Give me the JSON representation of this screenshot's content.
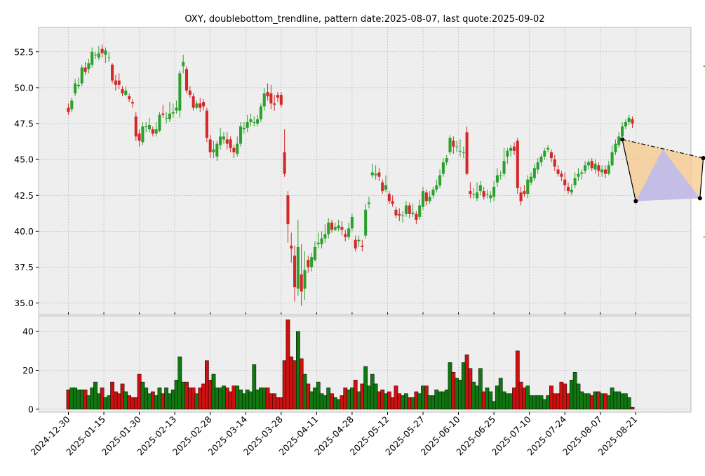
{
  "chart_data": {
    "type": "candlestick",
    "title": "OXY, doublebottom_trendline, pattern date:2025-08-07, last quote:2025-09-02",
    "price_axis": {
      "ylim": [
        34.2,
        54.2
      ],
      "ticks": [
        "35.0",
        "37.5",
        "40.0",
        "42.5",
        "45.0",
        "47.5",
        "50.0",
        "52.5"
      ]
    },
    "volume_axis": {
      "ylim": [
        -1.5,
        48
      ],
      "ticks": [
        "0",
        "20",
        "40"
      ]
    },
    "x_ticks": [
      "2024-12-30",
      "2025-01-15",
      "2025-01-30",
      "2025-02-13",
      "2025-02-28",
      "2025-03-14",
      "2025-03-28",
      "2025-04-11",
      "2025-04-28",
      "2025-05-12",
      "2025-05-27",
      "2025-06-10",
      "2025-06-25",
      "2025-07-10",
      "2025-07-24",
      "2025-08-07",
      "2025-08-21"
    ],
    "grid": true,
    "colors": {
      "up": "#2ca02c",
      "down": "#d62728",
      "vol_up": "#117711",
      "vol_down": "#cc1111",
      "levels": "#008000",
      "fill_pattern": "#f5c88a",
      "fill_inner": "#b8b8f5"
    },
    "pattern_points": [
      {
        "i": 164,
        "p": 46.4
      },
      {
        "i": 168,
        "p": 42.1
      },
      {
        "i": 187,
        "p": 42.3
      },
      {
        "i": 188,
        "p": 45.1
      }
    ],
    "levels": [
      {
        "i0": 188,
        "i1": 214,
        "p": 51.5
      },
      {
        "i0": 188,
        "i1": 214,
        "p": 39.6
      }
    ],
    "bars": [
      [
        0,
        48.6,
        48.3,
        48.9,
        48.1,
        10
      ],
      [
        1,
        48.5,
        49.1,
        49.3,
        48.3,
        11
      ],
      [
        2,
        49.6,
        50.3,
        50.6,
        49.4,
        11
      ],
      [
        3,
        50.1,
        50.2,
        50.7,
        49.9,
        10
      ],
      [
        4,
        50.3,
        51.4,
        51.6,
        50.1,
        10
      ],
      [
        5,
        51.4,
        51.1,
        51.8,
        50.9,
        10
      ],
      [
        6,
        51.3,
        51.7,
        52.0,
        51.0,
        7
      ],
      [
        7,
        51.6,
        52.5,
        52.8,
        51.4,
        11
      ],
      [
        8,
        52.3,
        52.3,
        52.5,
        52.0,
        14
      ],
      [
        9,
        52.1,
        52.4,
        52.9,
        51.9,
        8
      ],
      [
        10,
        52.7,
        52.4,
        53.0,
        52.1,
        11
      ],
      [
        11,
        52.3,
        52.6,
        52.8,
        51.7,
        6
      ],
      [
        12,
        52.1,
        52.1,
        52.5,
        51.8,
        7
      ],
      [
        13,
        51.6,
        50.5,
        51.7,
        50.3,
        14
      ],
      [
        14,
        50.5,
        50.2,
        50.9,
        49.8,
        9
      ],
      [
        15,
        50.5,
        50.2,
        51.0,
        49.9,
        8
      ],
      [
        16,
        49.9,
        49.6,
        50.1,
        49.4,
        13
      ],
      [
        17,
        49.5,
        49.8,
        50.1,
        49.4,
        9
      ],
      [
        18,
        49.4,
        49.2,
        49.6,
        49.0,
        7
      ],
      [
        19,
        49.0,
        48.9,
        49.2,
        48.6,
        6
      ],
      [
        20,
        48.0,
        46.6,
        48.3,
        46.3,
        6
      ],
      [
        21,
        46.8,
        46.3,
        47.1,
        45.9,
        18
      ],
      [
        22,
        46.2,
        47.3,
        47.6,
        46.0,
        14
      ],
      [
        23,
        47.3,
        47.3,
        47.6,
        46.9,
        11
      ],
      [
        24,
        47.1,
        47.4,
        47.9,
        46.9,
        8
      ],
      [
        25,
        47.1,
        46.8,
        47.3,
        46.6,
        9
      ],
      [
        26,
        46.8,
        47.1,
        47.6,
        46.6,
        7
      ],
      [
        27,
        47.0,
        48.1,
        48.3,
        46.9,
        11
      ],
      [
        28,
        48.2,
        48.1,
        48.8,
        47.9,
        8
      ],
      [
        29,
        47.9,
        47.9,
        48.3,
        47.5,
        11
      ],
      [
        30,
        47.8,
        48.2,
        49.0,
        47.6,
        8
      ],
      [
        31,
        48.2,
        48.3,
        48.9,
        47.9,
        10
      ],
      [
        32,
        48.4,
        48.6,
        49.1,
        48.2,
        15
      ],
      [
        33,
        48.4,
        51.0,
        51.2,
        47.9,
        27
      ],
      [
        34,
        51.5,
        51.8,
        52.3,
        51.0,
        14
      ],
      [
        35,
        51.3,
        49.8,
        51.5,
        49.6,
        14
      ],
      [
        36,
        49.8,
        49.5,
        50.1,
        49.3,
        11
      ],
      [
        37,
        49.4,
        48.6,
        49.6,
        48.4,
        11
      ],
      [
        38,
        48.6,
        48.9,
        49.1,
        48.5,
        8
      ],
      [
        39,
        48.9,
        48.6,
        49.3,
        48.3,
        11
      ],
      [
        40,
        49.0,
        48.7,
        49.2,
        48.4,
        13
      ],
      [
        41,
        48.4,
        46.5,
        48.6,
        46.2,
        25
      ],
      [
        42,
        46.4,
        45.5,
        46.7,
        45.1,
        15
      ],
      [
        43,
        45.5,
        45.7,
        46.3,
        45.1,
        18
      ],
      [
        44,
        45.2,
        46.1,
        46.3,
        44.9,
        11
      ],
      [
        45,
        46.0,
        46.6,
        47.2,
        45.7,
        11
      ],
      [
        46,
        46.4,
        46.6,
        46.9,
        46.1,
        12
      ],
      [
        47,
        46.4,
        46.1,
        46.9,
        45.7,
        11
      ],
      [
        48,
        46.4,
        45.8,
        46.6,
        45.5,
        9
      ],
      [
        49,
        45.8,
        45.5,
        46.0,
        45.1,
        12
      ],
      [
        50,
        45.4,
        46.1,
        46.6,
        45.2,
        12
      ],
      [
        51,
        46.1,
        47.3,
        47.6,
        45.9,
        10
      ],
      [
        52,
        47.1,
        47.2,
        47.6,
        46.8,
        8
      ],
      [
        53,
        47.2,
        47.6,
        48.1,
        46.9,
        10
      ],
      [
        54,
        47.6,
        47.8,
        48.2,
        47.3,
        9
      ],
      [
        55,
        47.6,
        47.6,
        48.0,
        47.3,
        23
      ],
      [
        56,
        47.5,
        47.8,
        48.1,
        47.3,
        10
      ],
      [
        57,
        47.8,
        48.7,
        48.9,
        47.6,
        11
      ],
      [
        58,
        48.7,
        49.6,
        50.0,
        48.4,
        11
      ],
      [
        59,
        49.7,
        49.4,
        50.3,
        49.1,
        11
      ],
      [
        60,
        49.6,
        48.9,
        50.2,
        48.5,
        8
      ],
      [
        61,
        48.9,
        48.8,
        49.5,
        48.4,
        8
      ],
      [
        62,
        49.5,
        49.3,
        49.7,
        49.0,
        6
      ],
      [
        63,
        49.5,
        48.8,
        49.7,
        48.6,
        6
      ],
      [
        64,
        45.5,
        44.0,
        47.1,
        43.8,
        25
      ],
      [
        65,
        42.5,
        40.5,
        42.8,
        39.2,
        46
      ],
      [
        66,
        39.0,
        38.8,
        39.9,
        37.8,
        27
      ],
      [
        67,
        38.3,
        36.1,
        39.0,
        35.1,
        25
      ],
      [
        68,
        36.0,
        38.9,
        40.8,
        35.5,
        40
      ],
      [
        69,
        37.0,
        35.8,
        39.1,
        34.8,
        26
      ],
      [
        70,
        36.0,
        37.3,
        38.6,
        35.2,
        18
      ],
      [
        71,
        38.0,
        37.5,
        38.3,
        37.1,
        13
      ],
      [
        72,
        37.5,
        38.2,
        38.5,
        37.2,
        9
      ],
      [
        73,
        38.0,
        38.9,
        39.3,
        37.9,
        11
      ],
      [
        74,
        39.1,
        39.2,
        39.9,
        38.8,
        14
      ],
      [
        75,
        39.1,
        39.5,
        40.0,
        38.8,
        8
      ],
      [
        76,
        39.5,
        39.8,
        40.5,
        39.2,
        7
      ],
      [
        77,
        39.8,
        40.6,
        40.9,
        39.5,
        11
      ],
      [
        78,
        40.6,
        40.1,
        40.8,
        39.9,
        8
      ],
      [
        79,
        40.1,
        40.3,
        40.6,
        40.0,
        6
      ],
      [
        80,
        40.2,
        40.4,
        40.8,
        40.0,
        5
      ],
      [
        81,
        40.3,
        40.1,
        40.7,
        39.7,
        7
      ],
      [
        82,
        39.8,
        39.6,
        40.1,
        39.3,
        11
      ],
      [
        83,
        39.6,
        40.2,
        40.6,
        39.4,
        10
      ],
      [
        84,
        40.2,
        41.0,
        41.2,
        40.0,
        11
      ],
      [
        85,
        39.4,
        38.8,
        39.7,
        38.6,
        15
      ],
      [
        86,
        39.3,
        39.4,
        39.7,
        38.9,
        9
      ],
      [
        87,
        39.0,
        38.9,
        39.4,
        38.6,
        13
      ],
      [
        88,
        39.7,
        41.5,
        41.9,
        39.5,
        22
      ],
      [
        89,
        41.9,
        42.0,
        42.4,
        41.6,
        12
      ],
      [
        90,
        43.9,
        44.1,
        44.7,
        43.7,
        18
      ],
      [
        91,
        43.9,
        44.0,
        44.6,
        43.6,
        13
      ],
      [
        92,
        44.1,
        43.8,
        44.4,
        43.5,
        9
      ],
      [
        93,
        43.4,
        42.8,
        43.6,
        42.6,
        10
      ],
      [
        94,
        42.9,
        43.2,
        43.9,
        42.7,
        8
      ],
      [
        95,
        42.6,
        42.1,
        42.8,
        41.9,
        9
      ],
      [
        96,
        42.1,
        41.9,
        42.5,
        41.7,
        6
      ],
      [
        97,
        41.5,
        41.1,
        41.7,
        40.9,
        12
      ],
      [
        98,
        41.2,
        41.1,
        41.6,
        40.7,
        8
      ],
      [
        99,
        41.1,
        41.1,
        41.4,
        40.6,
        7
      ],
      [
        100,
        41.2,
        41.8,
        42.1,
        41.0,
        8
      ],
      [
        101,
        41.8,
        41.2,
        42.0,
        40.9,
        6
      ],
      [
        102,
        41.2,
        41.3,
        41.9,
        41.0,
        6
      ],
      [
        103,
        41.2,
        40.8,
        41.4,
        40.5,
        9
      ],
      [
        104,
        41.0,
        41.8,
        42.2,
        40.8,
        8
      ],
      [
        105,
        41.7,
        42.8,
        43.1,
        41.5,
        12
      ],
      [
        106,
        42.7,
        42.1,
        42.9,
        41.8,
        12
      ],
      [
        107,
        42.1,
        42.4,
        42.8,
        41.9,
        7
      ],
      [
        108,
        42.5,
        42.9,
        43.1,
        42.3,
        7
      ],
      [
        109,
        42.9,
        43.2,
        43.6,
        42.7,
        10
      ],
      [
        110,
        43.2,
        43.9,
        44.3,
        43.0,
        9
      ],
      [
        111,
        44.0,
        44.8,
        45.1,
        43.8,
        9
      ],
      [
        112,
        44.8,
        45.1,
        45.3,
        44.6,
        10
      ],
      [
        113,
        45.5,
        46.5,
        46.7,
        45.3,
        24
      ],
      [
        114,
        46.3,
        45.9,
        46.6,
        45.4,
        19
      ],
      [
        115,
        45.9,
        45.9,
        46.3,
        45.5,
        16
      ],
      [
        116,
        45.6,
        45.6,
        46.4,
        45.2,
        15
      ],
      [
        117,
        45.5,
        45.5,
        45.9,
        45.1,
        24
      ],
      [
        118,
        46.9,
        44.0,
        47.3,
        43.9,
        28
      ],
      [
        119,
        42.8,
        42.6,
        43.4,
        42.3,
        21
      ],
      [
        120,
        42.6,
        42.6,
        43.0,
        42.3,
        14
      ],
      [
        121,
        42.3,
        42.7,
        43.4,
        42.1,
        12
      ],
      [
        122,
        42.8,
        43.2,
        43.5,
        42.5,
        21
      ],
      [
        123,
        42.8,
        42.4,
        43.1,
        42.2,
        9
      ],
      [
        124,
        42.6,
        42.6,
        42.9,
        42.3,
        11
      ],
      [
        125,
        42.3,
        42.5,
        42.8,
        42.0,
        9
      ],
      [
        126,
        42.4,
        43.1,
        43.5,
        42.1,
        4
      ],
      [
        127,
        43.4,
        43.9,
        44.4,
        43.1,
        12
      ],
      [
        128,
        43.9,
        43.9,
        44.2,
        43.6,
        16
      ],
      [
        129,
        44.0,
        44.9,
        45.8,
        43.8,
        9
      ],
      [
        130,
        45.2,
        45.6,
        45.8,
        44.7,
        8
      ],
      [
        131,
        45.6,
        45.8,
        46.0,
        45.2,
        8
      ],
      [
        132,
        45.9,
        45.6,
        46.2,
        45.3,
        11
      ],
      [
        133,
        46.3,
        43.0,
        46.5,
        42.6,
        30
      ],
      [
        134,
        42.7,
        42.1,
        43.1,
        41.8,
        14
      ],
      [
        135,
        42.8,
        42.6,
        43.2,
        42.4,
        11
      ],
      [
        136,
        42.6,
        43.6,
        43.9,
        42.3,
        12
      ],
      [
        137,
        43.4,
        43.8,
        44.1,
        43.2,
        7
      ],
      [
        138,
        43.7,
        44.4,
        44.7,
        43.5,
        7
      ],
      [
        139,
        44.3,
        44.8,
        45.1,
        44.0,
        7
      ],
      [
        140,
        44.8,
        45.2,
        45.4,
        44.5,
        7
      ],
      [
        141,
        45.2,
        45.6,
        45.8,
        45.0,
        5
      ],
      [
        142,
        45.7,
        45.8,
        46.0,
        45.5,
        7
      ],
      [
        143,
        45.5,
        45.1,
        45.7,
        44.8,
        12
      ],
      [
        144,
        45.0,
        44.5,
        45.3,
        44.2,
        8
      ],
      [
        145,
        44.3,
        44.0,
        44.6,
        43.8,
        8
      ],
      [
        146,
        44.0,
        43.8,
        44.2,
        43.5,
        14
      ],
      [
        147,
        43.6,
        43.2,
        44.1,
        42.8,
        13
      ],
      [
        148,
        43.1,
        42.8,
        43.4,
        42.6,
        8
      ],
      [
        149,
        42.7,
        42.9,
        43.3,
        42.5,
        15
      ],
      [
        150,
        43.2,
        43.7,
        44.1,
        43.0,
        19
      ],
      [
        151,
        43.8,
        44.0,
        44.4,
        43.5,
        13
      ],
      [
        152,
        44.0,
        44.1,
        44.3,
        43.6,
        9
      ],
      [
        153,
        44.2,
        44.6,
        44.9,
        44.0,
        8
      ],
      [
        154,
        44.6,
        44.8,
        45.0,
        44.3,
        8
      ],
      [
        155,
        44.9,
        44.4,
        45.1,
        44.2,
        7
      ],
      [
        156,
        44.3,
        44.7,
        45.0,
        44.0,
        9
      ],
      [
        157,
        44.6,
        44.2,
        44.8,
        43.8,
        9
      ],
      [
        158,
        44.1,
        44.3,
        44.6,
        43.8,
        8
      ],
      [
        159,
        44.3,
        44.0,
        44.6,
        43.7,
        8
      ],
      [
        160,
        44.0,
        44.6,
        44.9,
        43.9,
        7
      ],
      [
        161,
        44.6,
        45.5,
        46.0,
        44.5,
        11
      ],
      [
        162,
        45.5,
        46.1,
        46.4,
        45.3,
        9
      ],
      [
        163,
        46.0,
        46.6,
        46.9,
        45.8,
        9
      ],
      [
        164,
        46.6,
        47.3,
        47.6,
        46.4,
        8
      ],
      [
        165,
        47.3,
        47.6,
        47.8,
        47.1,
        8
      ],
      [
        166,
        47.6,
        47.9,
        48.1,
        47.4,
        6
      ],
      [
        167,
        47.8,
        47.5,
        48.0,
        47.2,
        1
      ]
    ]
  }
}
